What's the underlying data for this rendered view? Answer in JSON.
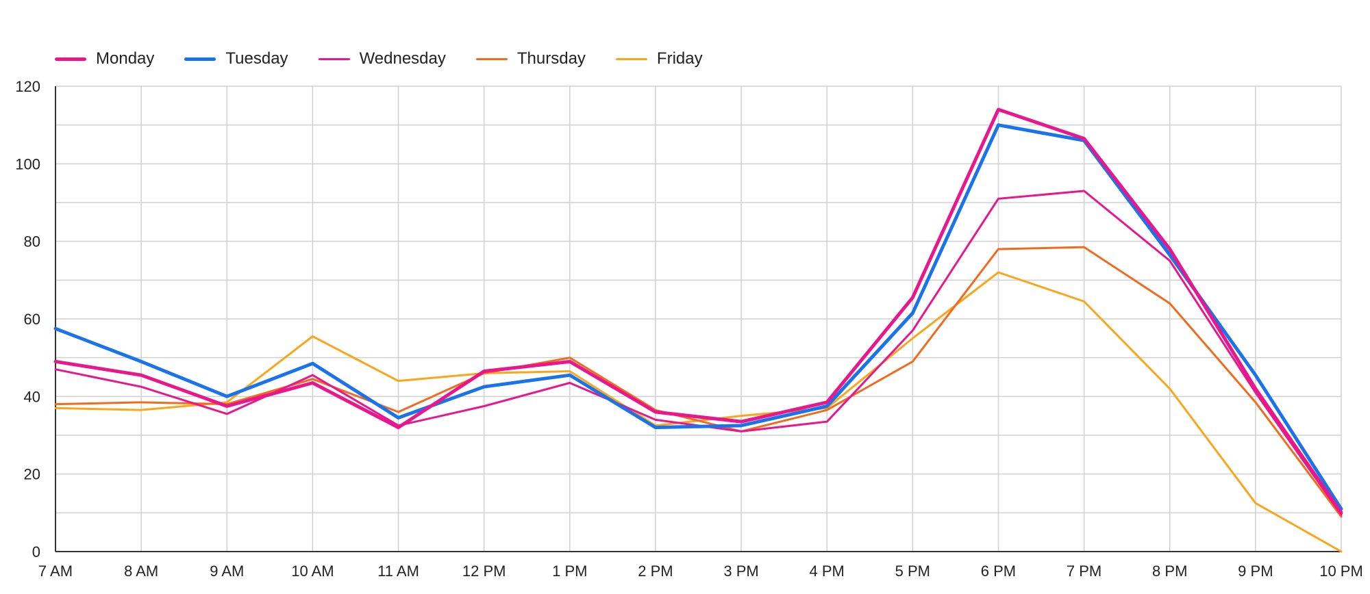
{
  "chart_data": {
    "type": "line",
    "title": "",
    "xlabel": "",
    "ylabel": "",
    "categories": [
      "7 AM",
      "8 AM",
      "9 AM",
      "10 AM",
      "11 AM",
      "12 PM",
      "1 PM",
      "2 PM",
      "3 PM",
      "4 PM",
      "5 PM",
      "6 PM",
      "7 PM",
      "8 PM",
      "9 PM",
      "10 PM"
    ],
    "ylim": [
      0,
      120
    ],
    "yticks": [
      0,
      20,
      40,
      60,
      80,
      100,
      120
    ],
    "grid": true,
    "legend_position": "top-left",
    "series": [
      {
        "name": "Monday",
        "color": "#e8188c",
        "width": 5,
        "values": [
          49,
          45.5,
          37.5,
          43.5,
          32,
          46.5,
          49,
          36,
          33.5,
          38.5,
          65.5,
          114,
          106.5,
          78,
          42,
          10
        ]
      },
      {
        "name": "Tuesday",
        "color": "#1a73e8",
        "width": 5,
        "values": [
          57.5,
          49,
          40,
          48.5,
          34.5,
          42.5,
          45.5,
          32,
          32.5,
          37.5,
          61.5,
          110,
          106,
          76.5,
          45.5,
          11
        ]
      },
      {
        "name": "Wednesday",
        "color": "#e8188c",
        "width": 3,
        "values": [
          47,
          42.5,
          35.5,
          45.5,
          32.5,
          37.5,
          43.5,
          34,
          31,
          33.5,
          57,
          91,
          93,
          75,
          41,
          9.5
        ]
      },
      {
        "name": "Thursday",
        "color": "#f26b1d",
        "width": 3,
        "values": [
          38,
          38.5,
          38,
          44.5,
          36,
          46,
          50,
          36.5,
          31,
          36.5,
          49,
          78,
          78.5,
          64,
          38.5,
          9
        ]
      },
      {
        "name": "Friday",
        "color": "#f9a61a",
        "width": 3,
        "values": [
          37,
          36.5,
          38.5,
          55.5,
          44,
          46,
          46.5,
          32.5,
          35,
          37,
          55,
          72,
          64.5,
          42,
          12.5,
          0
        ]
      }
    ]
  }
}
